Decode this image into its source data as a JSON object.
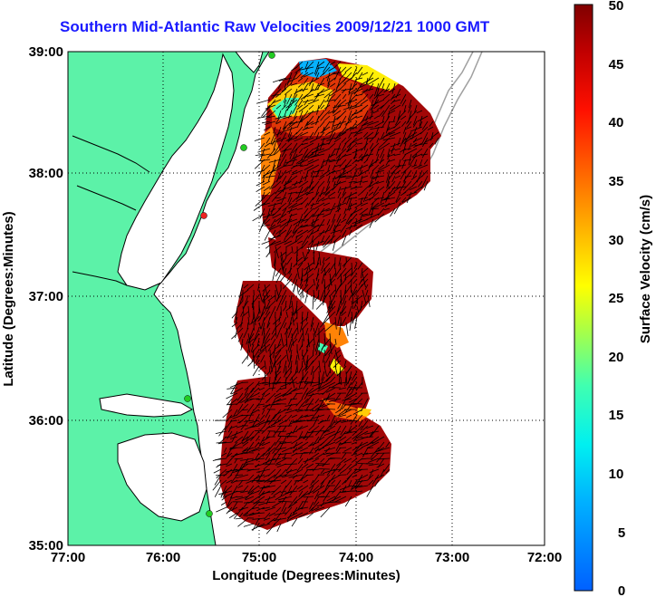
{
  "title": "Southern Mid-Atlantic Raw Velocities 2009/12/21 1000 GMT",
  "x_axis": {
    "label": "Longitude (Degrees:Minutes)",
    "ticks": [
      "77:00",
      "76:00",
      "75:00",
      "74:00",
      "73:00",
      "72:00"
    ]
  },
  "y_axis": {
    "label": "Latitude (Degrees:Minutes)",
    "ticks": [
      "39:00",
      "38:00",
      "37:00",
      "36:00",
      "35:00"
    ]
  },
  "colorbar": {
    "label": "Surface Velocity (cm/s)",
    "ticks": [
      "50",
      "45",
      "40",
      "35",
      "30",
      "25",
      "20",
      "15",
      "10",
      "5",
      "0"
    ],
    "min": 0,
    "max": 50
  },
  "colors": {
    "land": "#5cf2a8",
    "water": "#ffffff",
    "title": "#1a1aff",
    "bathymetry": "#a0a0a0",
    "station": "#22cc22",
    "station_alt": "#ee2222"
  },
  "map": {
    "lon_range": [
      -77,
      -72
    ],
    "lat_range": [
      35,
      39
    ],
    "grid": true
  }
}
